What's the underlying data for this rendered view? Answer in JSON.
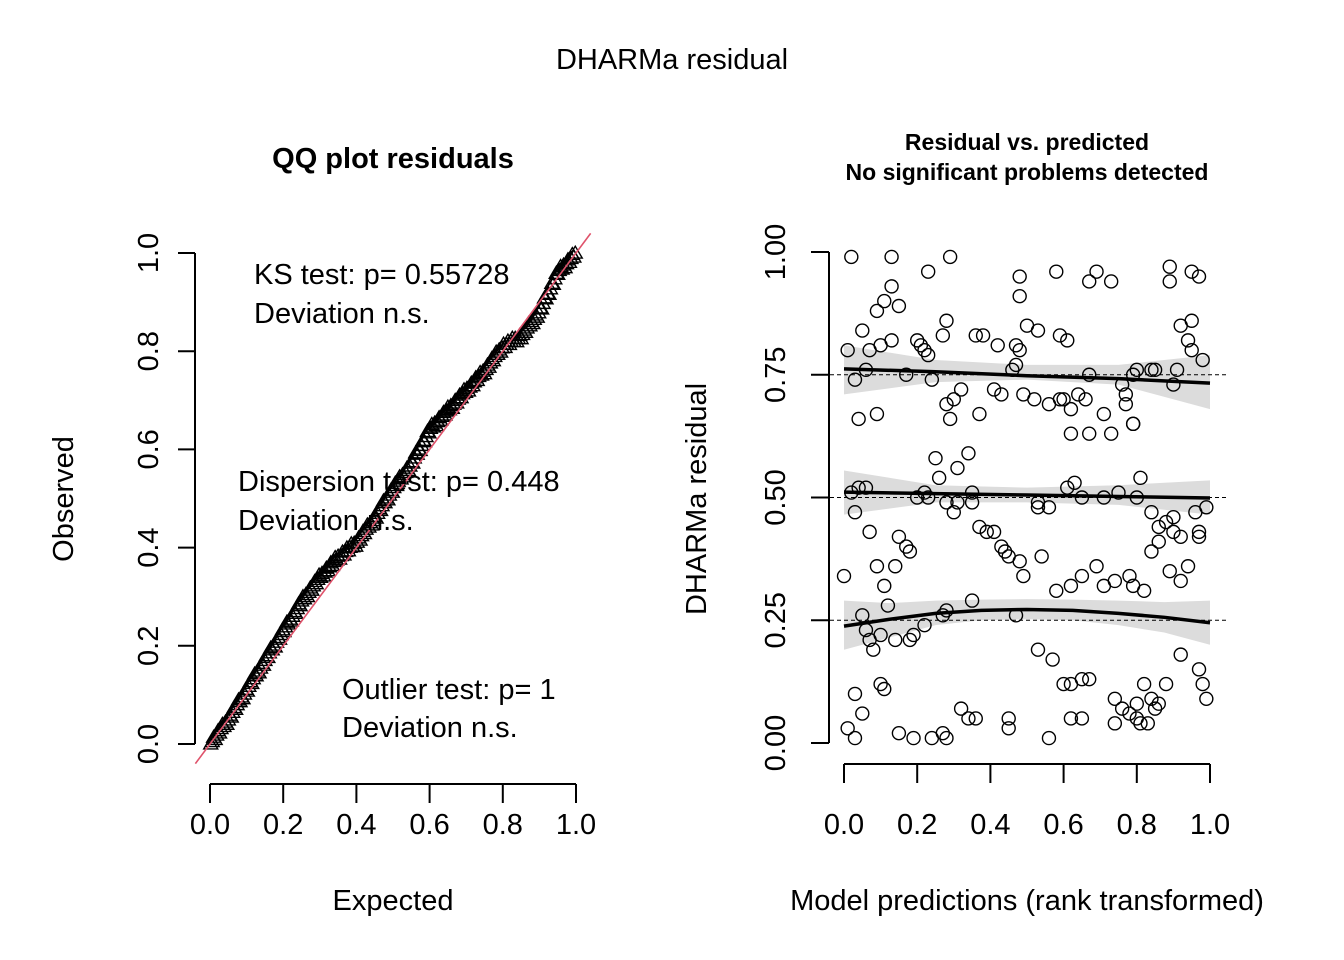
{
  "title": "DHARMa residual",
  "chart_data": [
    {
      "type": "scatter",
      "panel": "left",
      "title": "QQ plot residuals",
      "xlabel": "Expected",
      "ylabel": "Observed",
      "xlim": [
        0,
        1
      ],
      "ylim": [
        0,
        1
      ],
      "xticks": [
        "0.0",
        "0.2",
        "0.4",
        "0.6",
        "0.8",
        "1.0"
      ],
      "yticks": [
        "0.0",
        "0.2",
        "0.4",
        "0.6",
        "0.8",
        "1.0"
      ],
      "marker": "triangle",
      "reference_line": {
        "slope": 1,
        "intercept": 0,
        "color": "#df536b"
      },
      "n_points": 250,
      "deviation_profile": {
        "x": [
          0.0,
          0.05,
          0.1,
          0.15,
          0.2,
          0.25,
          0.3,
          0.35,
          0.4,
          0.45,
          0.5,
          0.55,
          0.6,
          0.65,
          0.7,
          0.75,
          0.8,
          0.85,
          0.9,
          0.95,
          1.0
        ],
        "y": [
          0.0,
          0.05,
          0.11,
          0.17,
          0.23,
          0.29,
          0.34,
          0.38,
          0.41,
          0.46,
          0.52,
          0.57,
          0.64,
          0.68,
          0.72,
          0.76,
          0.81,
          0.83,
          0.88,
          0.96,
          1.0
        ]
      },
      "annotations": [
        {
          "line1": "KS test: p= 0.55728",
          "line2": "Deviation  n.s."
        },
        {
          "line1": "Dispersion test: p= 0.448",
          "line2": "Deviation  n.s."
        },
        {
          "line1": "Outlier test: p= 1",
          "line2": "Deviation  n.s."
        }
      ]
    },
    {
      "type": "scatter",
      "panel": "right",
      "title_line1": "Residual vs. predicted",
      "title_line2": "No significant problems detected",
      "xlabel": "Model predictions (rank transformed)",
      "ylabel": "DHARMa residual",
      "xlim": [
        0,
        1
      ],
      "ylim": [
        0,
        1
      ],
      "xticks": [
        "0.0",
        "0.2",
        "0.4",
        "0.6",
        "0.8",
        "1.0"
      ],
      "yticks": [
        "0.00",
        "0.25",
        "0.50",
        "0.75",
        "1.00"
      ],
      "reference_lines": [
        0.25,
        0.5,
        0.75
      ],
      "marker": "open-circle",
      "points": [
        [
          0.02,
          0.99
        ],
        [
          0.13,
          0.99
        ],
        [
          0.29,
          0.99
        ],
        [
          0.23,
          0.96
        ],
        [
          0.13,
          0.93
        ],
        [
          0.11,
          0.9
        ],
        [
          0.09,
          0.88
        ],
        [
          0.15,
          0.89
        ],
        [
          0.28,
          0.86
        ],
        [
          0.27,
          0.83
        ],
        [
          0.05,
          0.84
        ],
        [
          0.13,
          0.82
        ],
        [
          0.1,
          0.81
        ],
        [
          0.2,
          0.82
        ],
        [
          0.21,
          0.81
        ],
        [
          0.22,
          0.8
        ],
        [
          0.23,
          0.79
        ],
        [
          0.07,
          0.8
        ],
        [
          0.01,
          0.8
        ],
        [
          0.17,
          0.75
        ],
        [
          0.38,
          0.83
        ],
        [
          0.36,
          0.83
        ],
        [
          0.42,
          0.81
        ],
        [
          0.32,
          0.72
        ],
        [
          0.43,
          0.71
        ],
        [
          0.28,
          0.69
        ],
        [
          0.3,
          0.7
        ],
        [
          0.29,
          0.66
        ],
        [
          0.37,
          0.67
        ],
        [
          0.41,
          0.72
        ],
        [
          0.24,
          0.74
        ],
        [
          0.03,
          0.74
        ],
        [
          0.06,
          0.76
        ],
        [
          0.09,
          0.67
        ],
        [
          0.04,
          0.66
        ],
        [
          0.34,
          0.59
        ],
        [
          0.25,
          0.58
        ],
        [
          0.26,
          0.54
        ],
        [
          0.31,
          0.56
        ],
        [
          0.35,
          0.51
        ],
        [
          0.48,
          0.95
        ],
        [
          0.48,
          0.91
        ],
        [
          0.58,
          0.96
        ],
        [
          0.67,
          0.94
        ],
        [
          0.69,
          0.96
        ],
        [
          0.73,
          0.94
        ],
        [
          0.5,
          0.85
        ],
        [
          0.47,
          0.81
        ],
        [
          0.48,
          0.8
        ],
        [
          0.53,
          0.84
        ],
        [
          0.59,
          0.83
        ],
        [
          0.61,
          0.82
        ],
        [
          0.47,
          0.77
        ],
        [
          0.46,
          0.76
        ],
        [
          0.49,
          0.71
        ],
        [
          0.52,
          0.7
        ],
        [
          0.56,
          0.69
        ],
        [
          0.59,
          0.7
        ],
        [
          0.6,
          0.7
        ],
        [
          0.62,
          0.68
        ],
        [
          0.64,
          0.71
        ],
        [
          0.66,
          0.7
        ],
        [
          0.67,
          0.75
        ],
        [
          0.71,
          0.67
        ],
        [
          0.73,
          0.63
        ],
        [
          0.67,
          0.63
        ],
        [
          0.62,
          0.63
        ],
        [
          0.77,
          0.71
        ],
        [
          0.77,
          0.69
        ],
        [
          0.79,
          0.65
        ],
        [
          0.79,
          0.65
        ],
        [
          0.8,
          0.76
        ],
        [
          0.85,
          0.76
        ],
        [
          0.84,
          0.76
        ],
        [
          0.79,
          0.75
        ],
        [
          0.76,
          0.73
        ],
        [
          0.89,
          0.97
        ],
        [
          0.89,
          0.94
        ],
        [
          0.95,
          0.96
        ],
        [
          0.97,
          0.95
        ],
        [
          0.92,
          0.85
        ],
        [
          0.95,
          0.86
        ],
        [
          0.94,
          0.82
        ],
        [
          0.95,
          0.8
        ],
        [
          0.98,
          0.78
        ],
        [
          0.91,
          0.76
        ],
        [
          0.9,
          0.73
        ],
        [
          0.53,
          0.49
        ],
        [
          0.53,
          0.48
        ],
        [
          0.56,
          0.48
        ],
        [
          0.61,
          0.52
        ],
        [
          0.63,
          0.53
        ],
        [
          0.65,
          0.5
        ],
        [
          0.71,
          0.5
        ],
        [
          0.75,
          0.51
        ],
        [
          0.81,
          0.54
        ],
        [
          0.8,
          0.5
        ],
        [
          0.84,
          0.47
        ],
        [
          0.88,
          0.45
        ],
        [
          0.86,
          0.44
        ],
        [
          0.9,
          0.43
        ],
        [
          0.92,
          0.42
        ],
        [
          0.9,
          0.46
        ],
        [
          0.97,
          0.43
        ],
        [
          0.96,
          0.47
        ],
        [
          0.02,
          0.51
        ],
        [
          0.03,
          0.47
        ],
        [
          0.04,
          0.52
        ],
        [
          0.06,
          0.52
        ],
        [
          0.07,
          0.43
        ],
        [
          0.09,
          0.36
        ],
        [
          0.11,
          0.32
        ],
        [
          0.12,
          0.28
        ],
        [
          0.14,
          0.36
        ],
        [
          0.15,
          0.42
        ],
        [
          0.18,
          0.39
        ],
        [
          0.17,
          0.4
        ],
        [
          0.2,
          0.5
        ],
        [
          0.22,
          0.51
        ],
        [
          0.23,
          0.5
        ],
        [
          0.28,
          0.49
        ],
        [
          0.3,
          0.47
        ],
        [
          0.31,
          0.49
        ],
        [
          0.35,
          0.49
        ],
        [
          0.37,
          0.44
        ],
        [
          0.39,
          0.43
        ],
        [
          0.41,
          0.43
        ],
        [
          0.43,
          0.4
        ],
        [
          0.44,
          0.39
        ],
        [
          0.45,
          0.38
        ],
        [
          0.48,
          0.37
        ],
        [
          0.49,
          0.34
        ],
        [
          0.54,
          0.38
        ],
        [
          0.58,
          0.31
        ],
        [
          0.62,
          0.32
        ],
        [
          0.65,
          0.34
        ],
        [
          0.69,
          0.36
        ],
        [
          0.71,
          0.32
        ],
        [
          0.74,
          0.33
        ],
        [
          0.78,
          0.34
        ],
        [
          0.79,
          0.32
        ],
        [
          0.82,
          0.31
        ],
        [
          0.84,
          0.39
        ],
        [
          0.86,
          0.41
        ],
        [
          0.89,
          0.35
        ],
        [
          0.92,
          0.33
        ],
        [
          0.94,
          0.36
        ],
        [
          0.97,
          0.42
        ],
        [
          0.99,
          0.48
        ],
        [
          0.0,
          0.34
        ],
        [
          0.05,
          0.26
        ],
        [
          0.06,
          0.23
        ],
        [
          0.07,
          0.21
        ],
        [
          0.08,
          0.19
        ],
        [
          0.1,
          0.22
        ],
        [
          0.14,
          0.21
        ],
        [
          0.18,
          0.21
        ],
        [
          0.19,
          0.22
        ],
        [
          0.22,
          0.24
        ],
        [
          0.27,
          0.26
        ],
        [
          0.28,
          0.27
        ],
        [
          0.35,
          0.29
        ],
        [
          0.47,
          0.26
        ],
        [
          0.53,
          0.19
        ],
        [
          0.57,
          0.17
        ],
        [
          0.6,
          0.12
        ],
        [
          0.62,
          0.12
        ],
        [
          0.65,
          0.13
        ],
        [
          0.67,
          0.13
        ],
        [
          0.74,
          0.09
        ],
        [
          0.76,
          0.07
        ],
        [
          0.78,
          0.06
        ],
        [
          0.8,
          0.08
        ],
        [
          0.82,
          0.12
        ],
        [
          0.84,
          0.09
        ],
        [
          0.85,
          0.07
        ],
        [
          0.86,
          0.08
        ],
        [
          0.88,
          0.12
        ],
        [
          0.92,
          0.18
        ],
        [
          0.97,
          0.15
        ],
        [
          0.98,
          0.12
        ],
        [
          0.99,
          0.09
        ],
        [
          0.01,
          0.03
        ],
        [
          0.03,
          0.1
        ],
        [
          0.05,
          0.06
        ],
        [
          0.03,
          0.01
        ],
        [
          0.1,
          0.12
        ],
        [
          0.11,
          0.11
        ],
        [
          0.15,
          0.02
        ],
        [
          0.19,
          0.01
        ],
        [
          0.24,
          0.01
        ],
        [
          0.27,
          0.02
        ],
        [
          0.28,
          0.01
        ],
        [
          0.32,
          0.07
        ],
        [
          0.34,
          0.05
        ],
        [
          0.36,
          0.05
        ],
        [
          0.45,
          0.05
        ],
        [
          0.45,
          0.03
        ],
        [
          0.56,
          0.01
        ],
        [
          0.62,
          0.05
        ],
        [
          0.65,
          0.05
        ],
        [
          0.74,
          0.04
        ],
        [
          0.8,
          0.05
        ],
        [
          0.81,
          0.04
        ],
        [
          0.83,
          0.04
        ]
      ],
      "smooth_fits": [
        {
          "quantile": 0.75,
          "x": [
            0,
            0.25,
            0.5,
            0.75,
            1.0
          ],
          "y": [
            0.762,
            0.756,
            0.748,
            0.742,
            0.733
          ],
          "band_lower": [
            0.71,
            0.735,
            0.74,
            0.73,
            0.68
          ],
          "band_upper": [
            0.81,
            0.78,
            0.77,
            0.77,
            0.79
          ]
        },
        {
          "quantile": 0.5,
          "x": [
            0,
            0.25,
            0.5,
            0.75,
            1.0
          ],
          "y": [
            0.511,
            0.508,
            0.505,
            0.502,
            0.499
          ],
          "band_lower": [
            0.465,
            0.49,
            0.49,
            0.485,
            0.465
          ],
          "band_upper": [
            0.555,
            0.525,
            0.52,
            0.525,
            0.535
          ]
        },
        {
          "quantile": 0.25,
          "x": [
            0,
            0.125,
            0.25,
            0.375,
            0.5,
            0.625,
            0.75,
            0.875,
            1.0
          ],
          "y": [
            0.238,
            0.252,
            0.264,
            0.27,
            0.272,
            0.27,
            0.264,
            0.256,
            0.245
          ],
          "band_lower": [
            0.19,
            0.215,
            0.24,
            0.25,
            0.252,
            0.25,
            0.24,
            0.225,
            0.2
          ],
          "band_upper": [
            0.29,
            0.285,
            0.29,
            0.292,
            0.293,
            0.292,
            0.29,
            0.287,
            0.29
          ]
        }
      ]
    }
  ]
}
